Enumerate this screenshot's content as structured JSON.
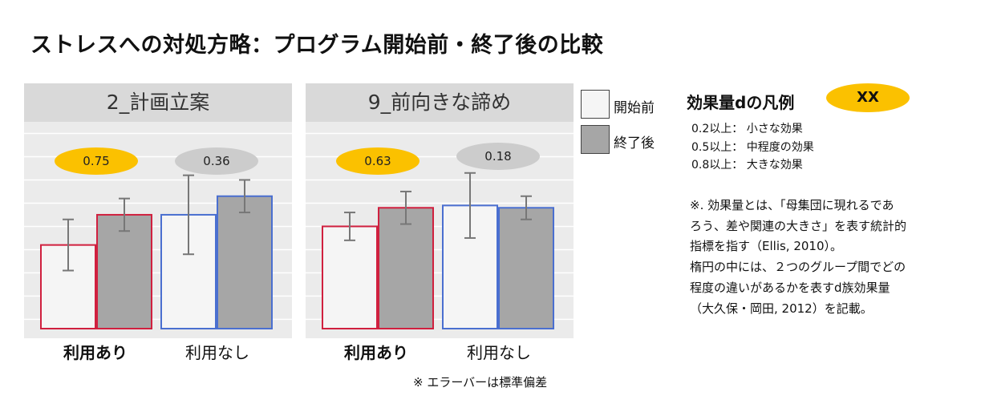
{
  "title": "ストレスへの対処方略：プログラム開始前・終了後の比較",
  "colors": {
    "pre_fill": "#f5f5f5",
    "post_fill": "#a6a6a6",
    "red_border": "#d0203f",
    "blue_border": "#4a6fd0",
    "pill_yellow": "#fbc100",
    "pill_gray": "#cccccc",
    "panel_bg": "#ebebeb",
    "header_bg": "#d9d9d9"
  },
  "legend": {
    "pre_label": "開始前",
    "post_label": "終了後"
  },
  "chart_data": [
    {
      "type": "bar",
      "title": "2_計画立案",
      "categories": [
        "利用あり",
        "利用なし"
      ],
      "series": [
        {
          "name": "開始前",
          "values": [
            3.1,
            3.75
          ],
          "error": [
            0.55,
            0.85
          ]
        },
        {
          "name": "終了後",
          "values": [
            3.75,
            4.15
          ],
          "error": [
            0.35,
            0.35
          ]
        }
      ],
      "effect_sizes": [
        "0.75",
        "0.36"
      ],
      "effect_colors": [
        "yellow",
        "gray"
      ],
      "ylim": [
        1.3,
        5.75
      ],
      "grid": true
    },
    {
      "type": "bar",
      "title": "9_前向きな諦め",
      "categories": [
        "利用あり",
        "利用なし"
      ],
      "series": [
        {
          "name": "開始前",
          "values": [
            3.5,
            3.95
          ],
          "error": [
            0.3,
            0.7
          ]
        },
        {
          "name": "終了後",
          "values": [
            3.9,
            3.9
          ],
          "error": [
            0.35,
            0.25
          ]
        }
      ],
      "effect_sizes": [
        "0.63",
        "0.18"
      ],
      "effect_colors": [
        "yellow",
        "gray"
      ],
      "ylim": [
        1.3,
        5.75
      ],
      "grid": true
    }
  ],
  "effect_legend": {
    "title": "効果量dの凡例",
    "pill": "XX",
    "items": [
      "0.2以上： 小さな効果",
      "0.5以上： 中程度の効果",
      "0.8以上： 大きな効果"
    ]
  },
  "note_lines": [
    "※. 効果量とは、「母集団に現れるであ",
    "ろう、差や関連の大きさ」を表す統計的",
    "指標を指す（Ellis, 2010）。",
    "楕円の中には、２つのグループ間でどの",
    "程度の違いがあるかを表すd族効果量",
    "（大久保・岡田, 2012）を記載。"
  ],
  "footnote": "※ エラーバーは標準偏差"
}
